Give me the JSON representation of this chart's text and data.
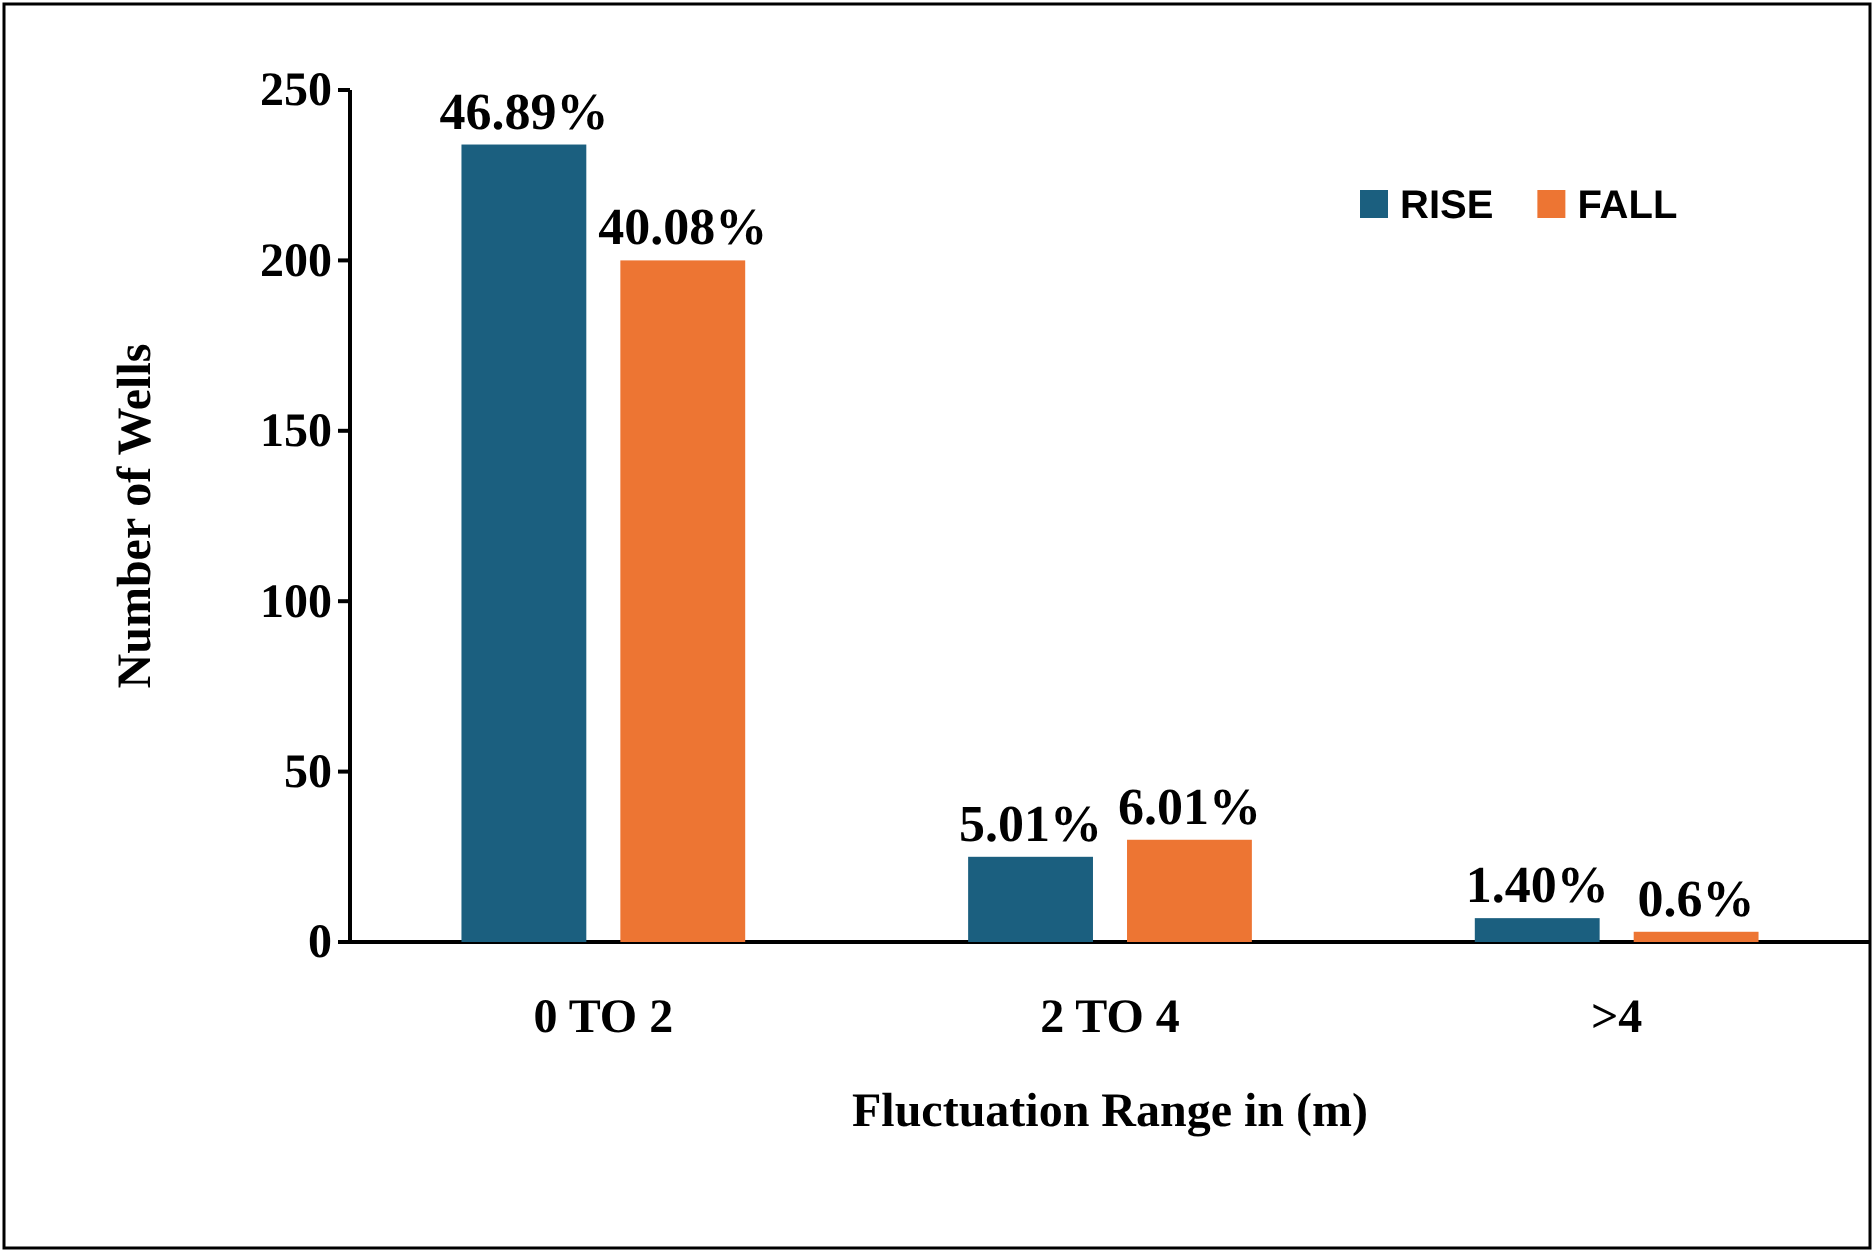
{
  "chart_data": {
    "type": "bar",
    "xlabel": "Fluctuation Range in (m)",
    "ylabel": "Number of Wells",
    "categories": [
      "0 TO 2",
      "2 TO 4",
      ">4"
    ],
    "series": [
      {
        "name": "RISE",
        "color": "#1b5f7f",
        "values": [
          234,
          25,
          7
        ]
      },
      {
        "name": "FALL",
        "color": "#ed7533",
        "values": [
          200,
          30,
          3
        ]
      }
    ],
    "annotations": [
      "46.89%",
      "40.08%",
      "5.01%",
      "6.01%",
      "1.40%",
      "0.6%"
    ],
    "ylim": [
      0,
      250
    ],
    "yticks": [
      0,
      50,
      100,
      150,
      200,
      250
    ],
    "grid": false,
    "legend": "top right"
  }
}
